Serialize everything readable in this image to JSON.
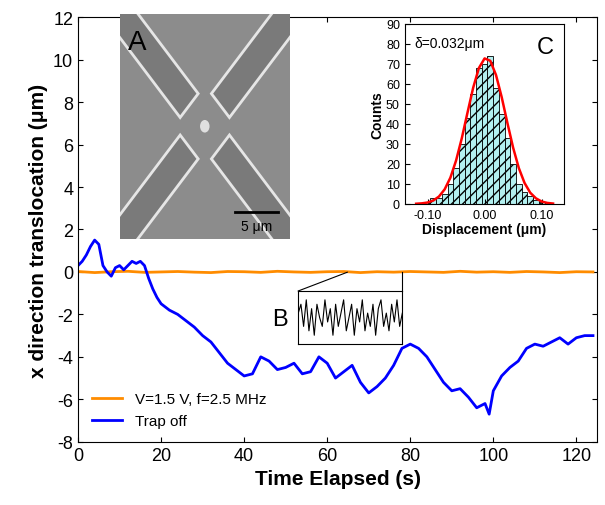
{
  "chart_data": [
    {
      "type": "line",
      "x_label": "Time Elapsed (s)",
      "y_label": "x direction translocation (μm)",
      "xlim": [
        0,
        125
      ],
      "xticks": [
        0,
        20,
        40,
        60,
        80,
        100,
        120
      ],
      "ylim": [
        -8,
        12
      ],
      "yticks": [
        -8,
        -6,
        -4,
        -2,
        0,
        2,
        4,
        6,
        8,
        10,
        12
      ],
      "legend": "lower left",
      "series": [
        {
          "name": "V=1.5 V, f=2.5 MHz",
          "color": "#ff8c00",
          "x": [
            0,
            4,
            8,
            12,
            16,
            20,
            24,
            28,
            32,
            36,
            40,
            44,
            48,
            52,
            56,
            60,
            64,
            68,
            72,
            76,
            80,
            84,
            88,
            92,
            96,
            100,
            104,
            108,
            112,
            116,
            120,
            124
          ],
          "values": [
            0.02,
            -0.03,
            0.01,
            0.03,
            -0.02,
            0.0,
            0.02,
            -0.01,
            -0.03,
            0.02,
            0.01,
            -0.02,
            0.03,
            0.0,
            -0.02,
            0.01,
            0.02,
            -0.03,
            0.01,
            -0.01,
            0.02,
            0.0,
            -0.02,
            0.03,
            -0.01,
            0.01,
            -0.02,
            0.02,
            0.0,
            -0.03,
            0.01,
            0.0
          ]
        },
        {
          "name": "Trap off",
          "color": "#0000ff",
          "x": [
            0,
            1,
            2,
            3,
            4,
            5,
            6,
            7,
            8,
            9,
            10,
            11,
            12,
            13,
            14,
            15,
            16,
            17,
            18,
            19,
            20,
            22,
            24,
            26,
            28,
            30,
            32,
            34,
            36,
            38,
            40,
            42,
            44,
            46,
            48,
            50,
            52,
            54,
            56,
            58,
            60,
            62,
            64,
            66,
            68,
            70,
            72,
            74,
            76,
            78,
            80,
            82,
            84,
            86,
            88,
            90,
            92,
            94,
            96,
            98,
            99,
            100,
            102,
            104,
            106,
            108,
            110,
            112,
            114,
            116,
            118,
            120,
            122,
            124
          ],
          "values": [
            0.3,
            0.5,
            0.8,
            1.2,
            1.5,
            1.3,
            0.3,
            0.0,
            -0.2,
            0.2,
            0.3,
            0.1,
            0.3,
            0.5,
            0.4,
            0.5,
            0.3,
            -0.3,
            -0.8,
            -1.2,
            -1.5,
            -1.8,
            -2.0,
            -2.3,
            -2.6,
            -3.0,
            -3.3,
            -3.8,
            -4.3,
            -4.6,
            -4.9,
            -4.8,
            -4.0,
            -4.2,
            -4.6,
            -4.5,
            -4.3,
            -4.8,
            -4.7,
            -4.0,
            -4.3,
            -5.0,
            -4.7,
            -4.4,
            -5.2,
            -5.7,
            -5.4,
            -5.0,
            -4.4,
            -3.6,
            -3.4,
            -3.6,
            -4.0,
            -4.6,
            -5.2,
            -5.6,
            -5.5,
            -5.9,
            -6.4,
            -6.2,
            -6.7,
            -5.6,
            -4.9,
            -4.5,
            -4.2,
            -3.6,
            -3.4,
            -3.5,
            -3.3,
            -3.1,
            -3.4,
            -3.1,
            -3.0,
            -3.0
          ]
        }
      ]
    },
    {
      "type": "image",
      "annotations": [
        "A",
        "5 μm"
      ]
    },
    {
      "type": "line",
      "annotations": [
        "B"
      ],
      "tick_labels": false,
      "color": "#000000",
      "xlim": [
        0,
        39
      ],
      "ylim": [
        -0.06,
        0.06
      ],
      "x": [
        0,
        1,
        2,
        3,
        4,
        5,
        6,
        7,
        8,
        9,
        10,
        11,
        12,
        13,
        14,
        15,
        16,
        17,
        18,
        19,
        20,
        21,
        22,
        23,
        24,
        25,
        26,
        27,
        28,
        29,
        30,
        31,
        32,
        33,
        34,
        35,
        36,
        37,
        38,
        39
      ],
      "values": [
        0.01,
        0.03,
        -0.02,
        0.04,
        -0.03,
        0.02,
        -0.04,
        0.03,
        0.0,
        -0.02,
        0.04,
        -0.01,
        0.02,
        -0.04,
        0.03,
        -0.02,
        0.01,
        0.04,
        -0.03,
        0.0,
        0.03,
        -0.04,
        0.02,
        -0.01,
        0.04,
        -0.03,
        0.01,
        -0.02,
        0.03,
        -0.04,
        0.02,
        0.04,
        -0.02,
        0.01,
        -0.03,
        0.03,
        -0.01,
        0.04,
        -0.02,
        0.01
      ]
    },
    {
      "type": "histogram",
      "annotations": [
        "C",
        "δ=0.032μm"
      ],
      "x_label": "Displacement (μm)",
      "y_label": "Counts",
      "color": "#b3f0f0",
      "bins": [
        -0.105,
        -0.095,
        -0.085,
        -0.075,
        -0.065,
        -0.055,
        -0.045,
        -0.035,
        -0.025,
        -0.015,
        -0.005,
        0.005,
        0.015,
        0.025,
        0.035,
        0.045,
        0.055,
        0.065,
        0.075,
        0.085,
        0.095,
        0.105,
        0.115
      ],
      "counts": [
        1,
        3,
        3,
        5,
        10,
        18,
        30,
        43,
        55,
        68,
        70,
        74,
        58,
        45,
        33,
        20,
        10,
        6,
        4,
        2,
        1,
        1
      ],
      "xlim": [
        -0.14,
        0.14
      ],
      "xticks": [
        {
          "value": -0.1,
          "label": "-0.10"
        },
        {
          "value": 0,
          "label": "0.00"
        },
        {
          "value": 0.1,
          "label": "0.10"
        }
      ],
      "ylim": [
        0,
        90
      ],
      "yticks": [
        0,
        10,
        20,
        30,
        40,
        50,
        60,
        70,
        80,
        90
      ],
      "fit": {
        "color": "#ff0000",
        "x": [
          -0.12,
          -0.11,
          -0.1,
          -0.09,
          -0.08,
          -0.07,
          -0.06,
          -0.05,
          -0.04,
          -0.03,
          -0.02,
          -0.01,
          0,
          0.01,
          0.02,
          0.03,
          0.04,
          0.05,
          0.06,
          0.07,
          0.08,
          0.09,
          0.1,
          0.11,
          0.12
        ],
        "values": [
          0.1,
          0.3,
          0.7,
          1.7,
          3.7,
          7.3,
          13.1,
          21.7,
          32.8,
          45.6,
          58.1,
          67.9,
          72.7,
          71.5,
          64.4,
          53.3,
          40.4,
          28.1,
          17.9,
          10.5,
          5.6,
          2.8,
          1.2,
          0.5,
          0.2
        ]
      }
    }
  ]
}
